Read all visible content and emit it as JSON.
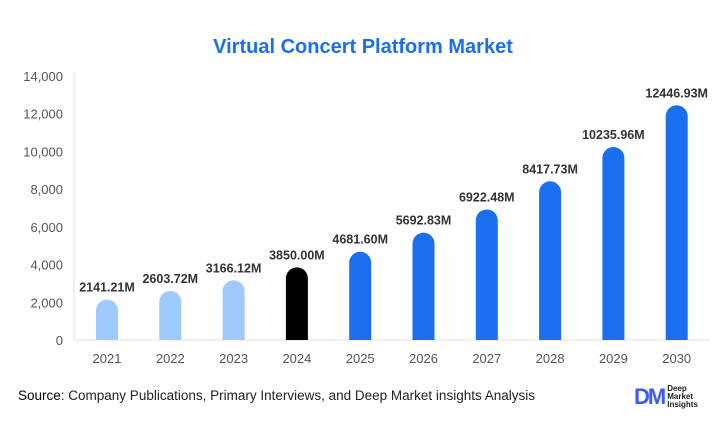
{
  "chart_data": {
    "type": "bar",
    "title": "Virtual Concert Platform Market",
    "categories": [
      "2021",
      "2022",
      "2023",
      "2024",
      "2025",
      "2026",
      "2027",
      "2028",
      "2029",
      "2030"
    ],
    "values": [
      2141.21,
      2603.72,
      3166.12,
      3850.0,
      4681.6,
      5692.83,
      6922.48,
      8417.73,
      10235.96,
      12446.93
    ],
    "data_labels": [
      "2141.21M",
      "2603.72M",
      "3166.12M",
      "3850.00M",
      "4681.60M",
      "5692.83M",
      "6922.48M",
      "8417.73M",
      "10235.96M",
      "12446.93M"
    ],
    "ylim": [
      0,
      14000
    ],
    "yticks": [
      0,
      2000,
      4000,
      6000,
      8000,
      10000,
      12000,
      14000
    ],
    "ytick_labels": [
      "0",
      "2,000",
      "4,000",
      "6,000",
      "8,000",
      "10,000",
      "12,000",
      "14,000"
    ],
    "grid": false,
    "bar_colors": [
      "#9ecbfb",
      "#9ecbfb",
      "#9ecbfb",
      "#000000",
      "#1a6ff0",
      "#1a6ff0",
      "#1a6ff0",
      "#1a6ff0",
      "#1a6ff0",
      "#1a6ff0"
    ]
  },
  "source": {
    "label": "Source",
    "text": ": Company Publications, Primary Interviews, and Deep Market insights Analysis"
  },
  "logo": {
    "mark": "DM",
    "lines": [
      "Deep",
      "Market",
      "Insights"
    ]
  }
}
